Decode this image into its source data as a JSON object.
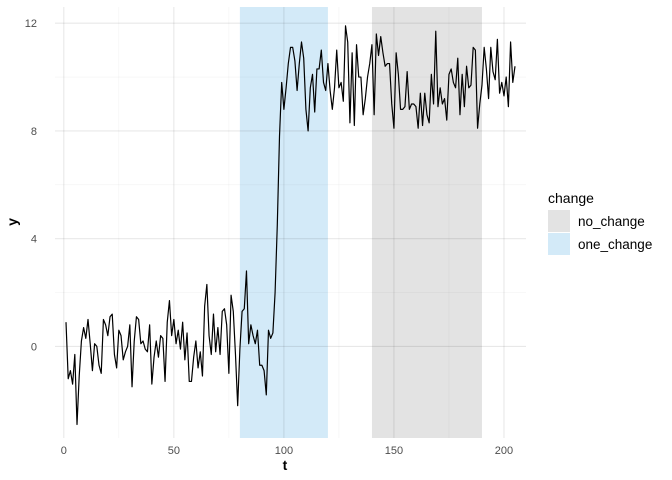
{
  "chart_data": {
    "type": "line",
    "xlabel": "t",
    "ylabel": "y",
    "xlim": [
      -4,
      210
    ],
    "ylim": [
      -3.4,
      12.6
    ],
    "x_ticks": [
      0,
      50,
      100,
      150,
      200
    ],
    "y_ticks": [
      0,
      4,
      8,
      12
    ],
    "grid": true,
    "legend": {
      "title": "change",
      "position": "right",
      "entries": [
        {
          "label": "no_change",
          "color": "#e3e3e3"
        },
        {
          "label": "one_change",
          "color": "#d3eaf8"
        }
      ]
    },
    "regions": [
      {
        "label": "one_change",
        "x_start": 80,
        "x_end": 120,
        "color": "#d3eaf8"
      },
      {
        "label": "no_change",
        "x_start": 140,
        "x_end": 190,
        "color": "#e3e3e3"
      }
    ],
    "series": [
      {
        "color": "#000000",
        "x_start": 1,
        "x_step": 1,
        "values": [
          0.9,
          -1.2,
          -0.9,
          -1.4,
          -0.3,
          -2.9,
          -1.1,
          0.2,
          0.7,
          0.3,
          1.0,
          0.1,
          -0.9,
          0.1,
          0.0,
          -0.7,
          -1.0,
          1.0,
          0.8,
          0.4,
          1.1,
          1.2,
          -0.3,
          -0.8,
          0.6,
          0.4,
          -0.5,
          -0.2,
          0.0,
          0.8,
          -1.5,
          0.2,
          1.1,
          1.0,
          0.1,
          0.2,
          -0.1,
          -0.2,
          0.8,
          -1.4,
          -0.4,
          0.2,
          -0.4,
          0.4,
          0.3,
          -1.3,
          0.9,
          1.7,
          0.4,
          1.0,
          0.1,
          0.6,
          -0.1,
          0.9,
          -0.5,
          0.5,
          -1.3,
          -1.3,
          -0.4,
          0.2,
          -0.8,
          -0.2,
          -1.1,
          1.5,
          2.3,
          0.4,
          -0.3,
          1.2,
          -0.2,
          0.7,
          -0.3,
          1.3,
          1.4,
          0.8,
          -1.0,
          1.9,
          1.3,
          -0.3,
          -2.2,
          -0.1,
          1.3,
          1.4,
          2.8,
          0.1,
          0.8,
          0.4,
          0.1,
          0.6,
          -0.7,
          -0.7,
          -0.9,
          -1.8,
          0.6,
          0.3,
          0.5,
          2.0,
          4.5,
          7.8,
          9.8,
          8.8,
          9.6,
          10.5,
          11.1,
          11.1,
          10.6,
          9.5,
          10.5,
          11.3,
          10.7,
          8.8,
          8.0,
          9.6,
          10.1,
          8.7,
          10.3,
          10.3,
          11.0,
          9.8,
          9.5,
          10.5,
          9.5,
          8.8,
          9.6,
          11.0,
          9.6,
          9.8,
          9.1,
          11.9,
          11.3,
          8.3,
          10.9,
          8.2,
          11.2,
          10.0,
          10.0,
          8.6,
          9.2,
          10.0,
          10.5,
          11.2,
          8.6,
          11.6,
          10.8,
          11.5,
          10.9,
          10.4,
          10.5,
          10.5,
          9.0,
          8.1,
          10.9,
          10.1,
          8.8,
          8.8,
          8.9,
          10.2,
          8.8,
          9.0,
          9.0,
          8.9,
          8.1,
          9.4,
          8.2,
          9.4,
          8.6,
          8.3,
          10.1,
          9.0,
          11.7,
          8.9,
          9.6,
          9.0,
          9.2,
          8.4,
          10.1,
          10.3,
          9.8,
          9.6,
          10.7,
          8.6,
          10.1,
          8.9,
          10.4,
          9.6,
          9.7,
          11.1,
          11.0,
          8.1,
          9.0,
          9.7,
          11.1,
          10.3,
          9.2,
          11.1,
          10.2,
          9.9,
          11.4,
          9.4,
          9.8,
          9.3,
          10.0,
          8.9,
          11.3,
          9.8,
          10.4
        ]
      }
    ]
  }
}
